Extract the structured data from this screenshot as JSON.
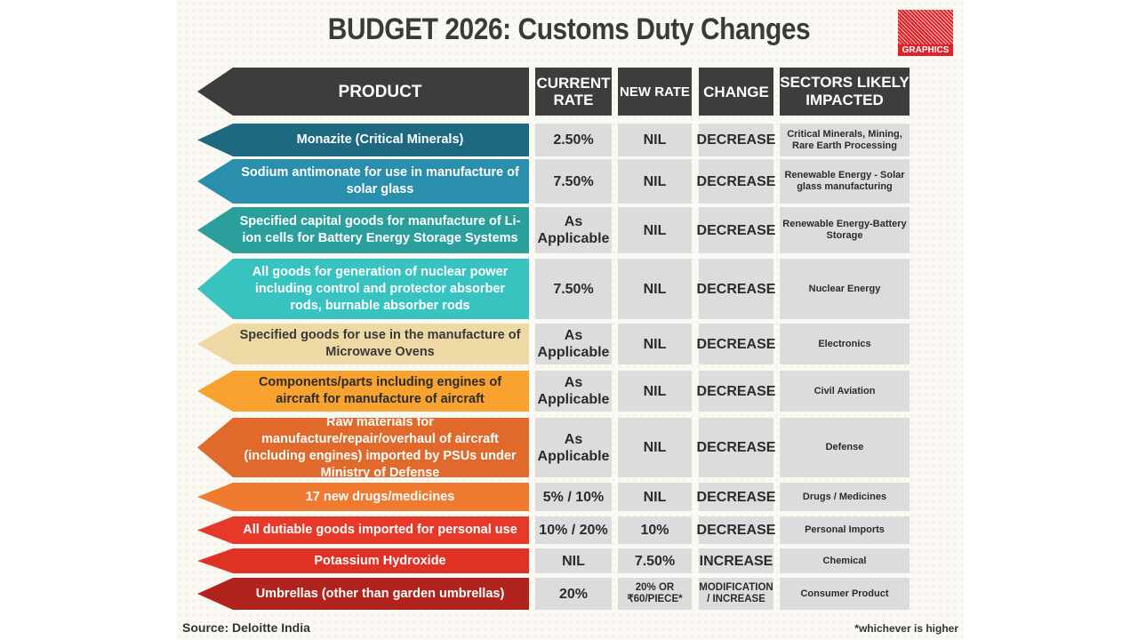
{
  "title": "BUDGET 2026: Customs Duty Changes",
  "logo": {
    "text": "PTI",
    "subtext": "GRAPHICS",
    "color": "#d9252a"
  },
  "headers": {
    "product": "PRODUCT",
    "current_rate": "CURRENT RATE",
    "new_rate": "NEW RATE",
    "change": "CHANGE",
    "sectors": "SECTORS LIKELY IMPACTED"
  },
  "header_color": "#3d3d3d",
  "rows": [
    {
      "product": "Monazite (Critical Minerals)",
      "current_rate": "2.50%",
      "new_rate": "NIL",
      "change": "DECREASE",
      "sectors": "Critical Minerals, Mining, Rare Earth Processing",
      "color": "#1d6a80",
      "text_color": "#ffffff"
    },
    {
      "product": "Sodium antimonate for use in manufacture of solar glass",
      "current_rate": "7.50%",
      "new_rate": "NIL",
      "change": "DECREASE",
      "sectors": "Renewable Energy - Solar glass manufacturing",
      "color": "#2a8fac",
      "text_color": "#ffffff"
    },
    {
      "product": "Specified capital goods for manufacture of Li-ion cells for Battery Energy Storage Systems",
      "current_rate": "As Applicable",
      "new_rate": "NIL",
      "change": "DECREASE",
      "sectors": "Renewable Energy-Battery Storage",
      "color": "#2a9f9c",
      "text_color": "#ffffff"
    },
    {
      "product": "All goods for generation of nuclear power including control and protector absorber rods, burnable absorber rods",
      "current_rate": "7.50%",
      "new_rate": "NIL",
      "change": "DECREASE",
      "sectors": "Nuclear Energy",
      "color": "#38c3c1",
      "text_color": "#ffffff"
    },
    {
      "product": "Specified goods for use in the manufacture of Microwave Ovens",
      "current_rate": "As Applicable",
      "new_rate": "NIL",
      "change": "DECREASE",
      "sectors": "Electronics",
      "color": "#eed8a4",
      "text_color": "#3a3a3a"
    },
    {
      "product": "Components/parts including engines of aircraft for manufacture of aircraft",
      "current_rate": "As Applicable",
      "new_rate": "NIL",
      "change": "DECREASE",
      "sectors": "Civil Aviation",
      "color": "#f8a230",
      "text_color": "#2b2b2b"
    },
    {
      "product": "Raw materials for manufacture/repair/overhaul of aircraft (including engines) imported by PSUs under Ministry of Defense",
      "current_rate": "As Applicable",
      "new_rate": "NIL",
      "change": "DECREASE",
      "sectors": "Defense",
      "color": "#e06a2b",
      "text_color": "#ffffff"
    },
    {
      "product": "17 new drugs/medicines",
      "current_rate": "5% / 10%",
      "new_rate": "NIL",
      "change": "DECREASE",
      "sectors": "Drugs / Medicines",
      "color": "#f07a30",
      "text_color": "#ffffff"
    },
    {
      "product": "All dutiable goods imported for personal use",
      "current_rate": "10% / 20%",
      "new_rate": "10%",
      "change": "DECREASE",
      "sectors": "Personal Imports",
      "color": "#e5392a",
      "text_color": "#ffffff"
    },
    {
      "product": "Potassium Hydroxide",
      "current_rate": "NIL",
      "new_rate": "7.50%",
      "change": "INCREASE",
      "sectors": "Chemical",
      "color": "#df3225",
      "text_color": "#ffffff"
    },
    {
      "product": "Umbrellas (other than garden umbrellas)",
      "current_rate": "20%",
      "new_rate": "20% OR ₹60/PIECE*",
      "change": "MODIFICATION / INCREASE",
      "sectors": "Consumer Product",
      "color": "#b1231d",
      "text_color": "#ffffff"
    }
  ],
  "source": "Source: Deloitte India",
  "footnote": "*whichever is higher"
}
